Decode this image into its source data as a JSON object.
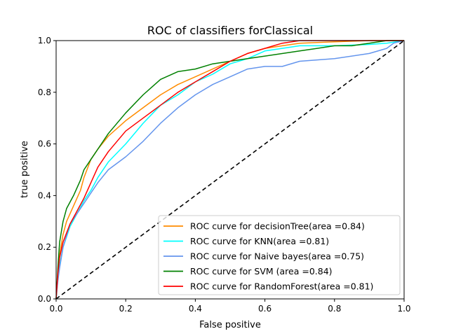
{
  "chart_data": {
    "type": "line",
    "title": "ROC of classifiers forClassical",
    "xlabel": "False positive",
    "ylabel": "true positive",
    "xlim": [
      0,
      1
    ],
    "ylim": [
      0,
      1
    ],
    "xticks": [
      "0.0",
      "0.2",
      "0.4",
      "0.6",
      "0.8",
      "1.0"
    ],
    "yticks": [
      "0.0",
      "0.2",
      "0.4",
      "0.6",
      "0.8",
      "1.0"
    ],
    "grid": false,
    "legend_position": "lower-right",
    "series": [
      {
        "name": "ROC curve for decisionTree(area =0.84)",
        "color": "#ff8c00",
        "x": [
          0,
          0.005,
          0.01,
          0.02,
          0.03,
          0.05,
          0.07,
          0.08,
          0.1,
          0.12,
          0.15,
          0.2,
          0.25,
          0.3,
          0.35,
          0.4,
          0.45,
          0.5,
          0.55,
          0.6,
          0.65,
          0.7,
          0.8,
          0.9,
          1.0
        ],
        "y": [
          0,
          0.1,
          0.17,
          0.25,
          0.3,
          0.36,
          0.42,
          0.47,
          0.54,
          0.58,
          0.63,
          0.69,
          0.74,
          0.79,
          0.83,
          0.86,
          0.89,
          0.92,
          0.95,
          0.97,
          0.98,
          0.99,
          0.995,
          1.0,
          1.0
        ]
      },
      {
        "name": "ROC curve for KNN(area =0.81)",
        "color": "#00ffff",
        "x": [
          0,
          0.005,
          0.01,
          0.02,
          0.04,
          0.06,
          0.08,
          0.1,
          0.12,
          0.15,
          0.2,
          0.25,
          0.3,
          0.35,
          0.4,
          0.45,
          0.5,
          0.55,
          0.6,
          0.65,
          0.7,
          0.8,
          0.9,
          0.95,
          1.0
        ],
        "y": [
          0,
          0.08,
          0.13,
          0.2,
          0.28,
          0.33,
          0.38,
          0.42,
          0.47,
          0.53,
          0.6,
          0.68,
          0.75,
          0.79,
          0.84,
          0.87,
          0.91,
          0.93,
          0.96,
          0.97,
          0.98,
          0.98,
          0.985,
          0.99,
          1.0
        ]
      },
      {
        "name": "ROC curve for Naive bayes(area =0.75)",
        "color": "#6495ed",
        "x": [
          0,
          0.005,
          0.01,
          0.02,
          0.04,
          0.06,
          0.08,
          0.1,
          0.12,
          0.15,
          0.18,
          0.2,
          0.25,
          0.3,
          0.35,
          0.4,
          0.45,
          0.5,
          0.55,
          0.6,
          0.65,
          0.7,
          0.8,
          0.9,
          0.95,
          0.97,
          1.0
        ],
        "y": [
          0,
          0.07,
          0.12,
          0.2,
          0.29,
          0.33,
          0.37,
          0.41,
          0.45,
          0.5,
          0.53,
          0.55,
          0.61,
          0.68,
          0.74,
          0.79,
          0.83,
          0.86,
          0.89,
          0.9,
          0.9,
          0.92,
          0.93,
          0.95,
          0.97,
          0.99,
          1.0
        ]
      },
      {
        "name": "ROC curve for SVM (area =0.84)",
        "color": "#008000",
        "x": [
          0,
          0.005,
          0.01,
          0.02,
          0.03,
          0.05,
          0.07,
          0.08,
          0.1,
          0.12,
          0.15,
          0.2,
          0.25,
          0.3,
          0.35,
          0.4,
          0.45,
          0.5,
          0.55,
          0.6,
          0.7,
          0.75,
          0.8,
          0.85,
          0.9,
          0.95,
          1.0
        ],
        "y": [
          0,
          0.12,
          0.22,
          0.3,
          0.35,
          0.4,
          0.46,
          0.5,
          0.54,
          0.58,
          0.64,
          0.72,
          0.79,
          0.85,
          0.88,
          0.89,
          0.91,
          0.92,
          0.93,
          0.94,
          0.96,
          0.97,
          0.98,
          0.98,
          0.99,
          1.0,
          1.0
        ]
      },
      {
        "name": "ROC curve for RandomForest(area =0.81)",
        "color": "#ff0000",
        "x": [
          0,
          0.005,
          0.01,
          0.02,
          0.04,
          0.06,
          0.08,
          0.1,
          0.12,
          0.15,
          0.2,
          0.25,
          0.3,
          0.35,
          0.4,
          0.45,
          0.5,
          0.55,
          0.6,
          0.65,
          0.7,
          1.0
        ],
        "y": [
          0,
          0.1,
          0.16,
          0.22,
          0.29,
          0.34,
          0.39,
          0.45,
          0.51,
          0.57,
          0.65,
          0.7,
          0.75,
          0.8,
          0.84,
          0.88,
          0.92,
          0.95,
          0.97,
          0.99,
          1.0,
          1.0
        ]
      },
      {
        "name": "",
        "color": "#000000",
        "dashed": true,
        "x": [
          0,
          1
        ],
        "y": [
          0,
          1
        ]
      }
    ]
  }
}
